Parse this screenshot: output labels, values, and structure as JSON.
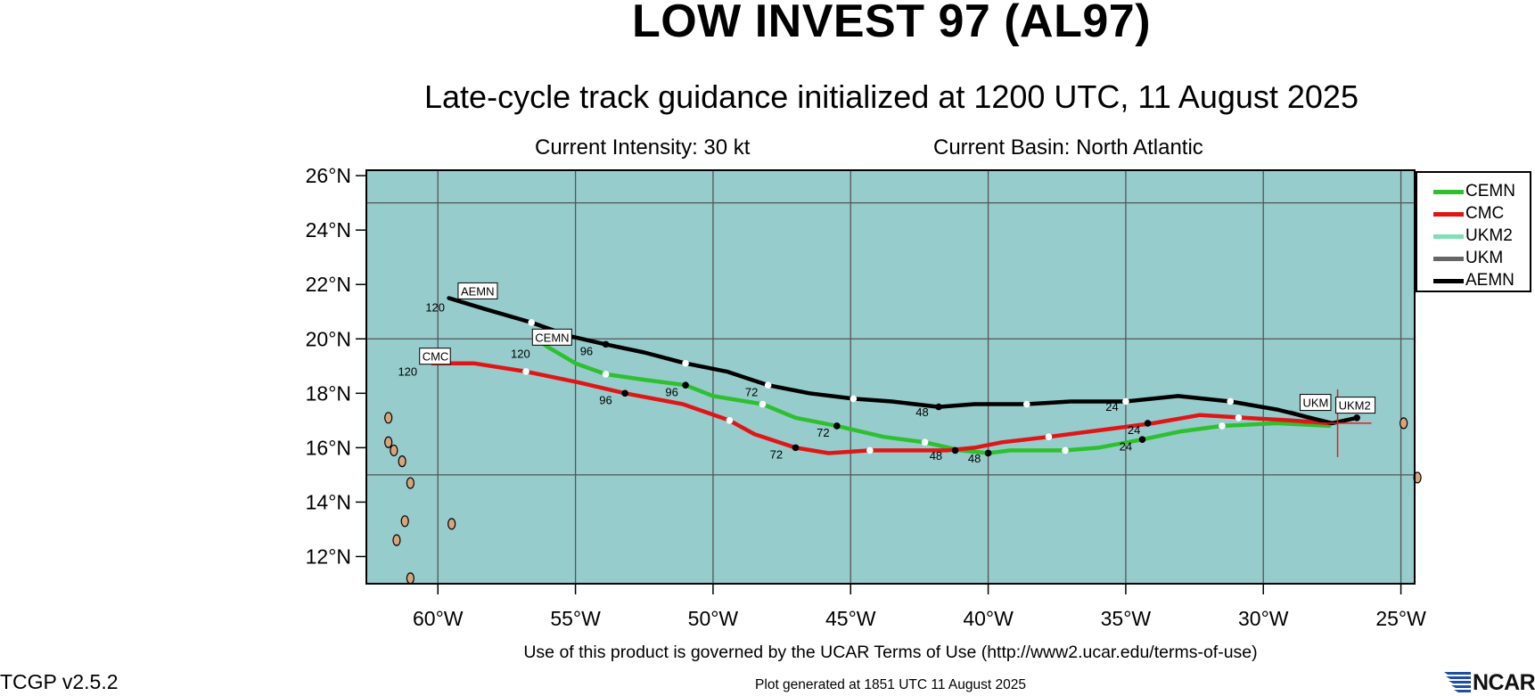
{
  "header": {
    "title": "LOW INVEST 97 (AL97)",
    "subtitle": "Late-cycle track guidance initialized at 1200 UTC, 11 August 2025",
    "intensity": "Current Intensity: 30 kt",
    "basin": "Current Basin: North Atlantic"
  },
  "footer": {
    "terms": "Use of this product is governed by the UCAR Terms of Use (http://www2.ucar.edu/terms-of-use)",
    "generated": "Plot generated at 1851 UTC   11 August 2025",
    "version": "TCGP v2.5.2",
    "logo_text": "NCAR"
  },
  "map": {
    "ocean_color": "#96cccc",
    "land_color": "#d8a47a",
    "lon_range": [
      -62.6,
      -24.5
    ],
    "lat_range": [
      11.0,
      26.2
    ],
    "lon_ticks": [
      {
        "lon": -60,
        "label": "60°W"
      },
      {
        "lon": -55,
        "label": "55°W"
      },
      {
        "lon": -50,
        "label": "50°W"
      },
      {
        "lon": -45,
        "label": "45°W"
      },
      {
        "lon": -40,
        "label": "40°W"
      },
      {
        "lon": -35,
        "label": "35°W"
      },
      {
        "lon": -30,
        "label": "30°W"
      },
      {
        "lon": -25,
        "label": "25°W"
      }
    ],
    "lat_ticks": [
      {
        "lat": 12,
        "label": "12°N"
      },
      {
        "lat": 14,
        "label": "14°N"
      },
      {
        "lat": 16,
        "label": "16°N"
      },
      {
        "lat": 18,
        "label": "18°N"
      },
      {
        "lat": 20,
        "label": "20°N"
      },
      {
        "lat": 22,
        "label": "22°N"
      },
      {
        "lat": 24,
        "label": "24°N"
      },
      {
        "lat": 26,
        "label": "26°N"
      }
    ],
    "grid_lons": [
      -60,
      -55,
      -50,
      -45,
      -40,
      -35,
      -30,
      -25
    ],
    "grid_lats": [
      15,
      20,
      25
    ],
    "current_position": {
      "lon": -27.3,
      "lat": 16.9,
      "marker_color": "#e02020"
    },
    "islands": [
      {
        "lon": -61.8,
        "lat": 16.2
      },
      {
        "lon": -61.3,
        "lat": 15.5
      },
      {
        "lon": -61.0,
        "lat": 14.7
      },
      {
        "lon": -61.2,
        "lat": 13.3
      },
      {
        "lon": -61.5,
        "lat": 12.6
      },
      {
        "lon": -59.5,
        "lat": 13.2
      },
      {
        "lon": -61.8,
        "lat": 17.1
      },
      {
        "lon": -61.6,
        "lat": 15.9
      },
      {
        "lon": -24.9,
        "lat": 16.9
      },
      {
        "lon": -24.4,
        "lat": 14.9
      },
      {
        "lon": -61.0,
        "lat": 11.2
      }
    ]
  },
  "legend": {
    "items": [
      {
        "label": "CEMN",
        "color": "#2ec02e"
      },
      {
        "label": "CMC",
        "color": "#e01616"
      },
      {
        "label": "UKM2",
        "color": "#7fe0b8"
      },
      {
        "label": "UKM",
        "color": "#666666"
      },
      {
        "label": "AEMN",
        "color": "#000000"
      }
    ]
  },
  "tracks": [
    {
      "name": "AEMN",
      "color": "#000000",
      "points": [
        [
          -26.6,
          17.1
        ],
        [
          -27.5,
          16.9
        ],
        [
          -29.5,
          17.4
        ],
        [
          -31.2,
          17.7
        ],
        [
          -33.1,
          17.9
        ],
        [
          -35.0,
          17.7
        ],
        [
          -37.0,
          17.7
        ],
        [
          -38.6,
          17.6
        ],
        [
          -40.5,
          17.6
        ],
        [
          -41.8,
          17.5
        ],
        [
          -43.5,
          17.7
        ],
        [
          -44.9,
          17.8
        ],
        [
          -46.5,
          18.0
        ],
        [
          -48.0,
          18.3
        ],
        [
          -49.5,
          18.8
        ],
        [
          -51.0,
          19.1
        ],
        [
          -52.5,
          19.5
        ],
        [
          -53.9,
          19.8
        ],
        [
          -55.2,
          20.1
        ],
        [
          -56.6,
          20.6
        ],
        [
          -58.3,
          21.1
        ],
        [
          -59.6,
          21.5
        ]
      ],
      "dots": [
        {
          "lon": -26.6,
          "lat": 17.1,
          "fill": "black"
        },
        {
          "lon": -31.2,
          "lat": 17.7,
          "fill": "white"
        },
        {
          "lon": -35.0,
          "lat": 17.7,
          "fill": "white"
        },
        {
          "lon": -38.6,
          "lat": 17.6,
          "fill": "white"
        },
        {
          "lon": -41.8,
          "lat": 17.5,
          "fill": "black"
        },
        {
          "lon": -44.9,
          "lat": 17.8,
          "fill": "white"
        },
        {
          "lon": -48.0,
          "lat": 18.3,
          "fill": "white"
        },
        {
          "lon": -51.0,
          "lat": 19.1,
          "fill": "white"
        },
        {
          "lon": -53.9,
          "lat": 19.8,
          "fill": "black"
        },
        {
          "lon": -56.6,
          "lat": 20.6,
          "fill": "white"
        }
      ],
      "labels": [
        {
          "lon": -35.5,
          "lat": 17.55,
          "text": "24"
        },
        {
          "lon": -42.4,
          "lat": 17.35,
          "text": "48"
        },
        {
          "lon": -48.6,
          "lat": 18.1,
          "text": "72"
        },
        {
          "lon": -54.6,
          "lat": 19.6,
          "text": "96"
        },
        {
          "lon": -60.1,
          "lat": 21.2,
          "text": "120"
        }
      ],
      "tag": {
        "lon": -59.2,
        "lat": 21.6,
        "text": "AEMN"
      }
    },
    {
      "name": "CMC",
      "color": "#e01616",
      "points": [
        [
          -27.6,
          16.9
        ],
        [
          -29.0,
          17.0
        ],
        [
          -30.7,
          17.1
        ],
        [
          -32.3,
          17.2
        ],
        [
          -34.0,
          16.9
        ],
        [
          -35.5,
          16.7
        ],
        [
          -37.8,
          16.4
        ],
        [
          -39.5,
          16.2
        ],
        [
          -40.5,
          16.0
        ],
        [
          -41.5,
          15.9
        ],
        [
          -44.3,
          15.9
        ],
        [
          -45.8,
          15.8
        ],
        [
          -47.0,
          16.0
        ],
        [
          -48.5,
          16.5
        ],
        [
          -49.4,
          17.0
        ],
        [
          -51.1,
          17.6
        ],
        [
          -53.2,
          18.0
        ],
        [
          -54.9,
          18.4
        ],
        [
          -56.8,
          18.8
        ],
        [
          -58.7,
          19.1
        ],
        [
          -60.2,
          19.1
        ]
      ],
      "dots": [
        {
          "lon": -30.9,
          "lat": 17.1,
          "fill": "white"
        },
        {
          "lon": -34.2,
          "lat": 16.9,
          "fill": "black"
        },
        {
          "lon": -37.8,
          "lat": 16.4,
          "fill": "white"
        },
        {
          "lon": -41.2,
          "lat": 15.9,
          "fill": "black"
        },
        {
          "lon": -44.3,
          "lat": 15.9,
          "fill": "white"
        },
        {
          "lon": -47.0,
          "lat": 16.0,
          "fill": "black"
        },
        {
          "lon": -49.4,
          "lat": 17.0,
          "fill": "white"
        },
        {
          "lon": -53.2,
          "lat": 18.0,
          "fill": "black"
        },
        {
          "lon": -56.8,
          "lat": 18.8,
          "fill": "white"
        }
      ],
      "labels": [
        {
          "lon": -34.7,
          "lat": 16.7,
          "text": "24"
        },
        {
          "lon": -41.9,
          "lat": 15.75,
          "text": "48"
        },
        {
          "lon": -47.7,
          "lat": 15.8,
          "text": "72"
        },
        {
          "lon": -53.9,
          "lat": 17.8,
          "text": "96"
        },
        {
          "lon": -61.1,
          "lat": 18.85,
          "text": "120"
        }
      ],
      "tag": {
        "lon": -60.6,
        "lat": 19.2,
        "text": "CMC"
      }
    },
    {
      "name": "CEMN",
      "color": "#2ec02e",
      "points": [
        [
          -27.6,
          16.8
        ],
        [
          -29.5,
          16.9
        ],
        [
          -31.5,
          16.8
        ],
        [
          -33.0,
          16.6
        ],
        [
          -34.4,
          16.3
        ],
        [
          -36.0,
          16.0
        ],
        [
          -37.2,
          15.9
        ],
        [
          -39.2,
          15.9
        ],
        [
          -40.0,
          15.8
        ],
        [
          -41.0,
          15.9
        ],
        [
          -42.3,
          16.2
        ],
        [
          -43.8,
          16.4
        ],
        [
          -45.5,
          16.8
        ],
        [
          -47.0,
          17.1
        ],
        [
          -48.2,
          17.6
        ],
        [
          -50.0,
          17.9
        ],
        [
          -51.0,
          18.3
        ],
        [
          -52.5,
          18.5
        ],
        [
          -53.9,
          18.7
        ],
        [
          -55.0,
          19.1
        ],
        [
          -56.0,
          19.7
        ],
        [
          -56.3,
          19.9
        ]
      ],
      "dots": [
        {
          "lon": -31.5,
          "lat": 16.8,
          "fill": "white"
        },
        {
          "lon": -34.4,
          "lat": 16.3,
          "fill": "black"
        },
        {
          "lon": -37.2,
          "lat": 15.9,
          "fill": "white"
        },
        {
          "lon": -40.0,
          "lat": 15.8,
          "fill": "black"
        },
        {
          "lon": -42.3,
          "lat": 16.2,
          "fill": "white"
        },
        {
          "lon": -45.5,
          "lat": 16.8,
          "fill": "black"
        },
        {
          "lon": -48.2,
          "lat": 17.6,
          "fill": "white"
        },
        {
          "lon": -51.0,
          "lat": 18.3,
          "fill": "black"
        },
        {
          "lon": -53.9,
          "lat": 18.7,
          "fill": "white"
        }
      ],
      "labels": [
        {
          "lon": -35.0,
          "lat": 16.1,
          "text": "24"
        },
        {
          "lon": -40.5,
          "lat": 15.65,
          "text": "48"
        },
        {
          "lon": -46.0,
          "lat": 16.6,
          "text": "72"
        },
        {
          "lon": -51.5,
          "lat": 18.1,
          "text": "96"
        },
        {
          "lon": -57.0,
          "lat": 19.5,
          "text": "120"
        }
      ],
      "tag": {
        "lon": -56.5,
        "lat": 19.9,
        "text": "CEMN"
      }
    },
    {
      "name": "UKM2",
      "color": "#7fe0b8",
      "points": [
        [
          -26.6,
          17.1
        ],
        [
          -27.5,
          16.9
        ]
      ],
      "dots": [],
      "labels": [],
      "tag": {
        "lon": -27.3,
        "lat": 17.4,
        "text": "UKM2"
      }
    },
    {
      "name": "UKM",
      "color": "#666666",
      "points": [
        [
          -27.6,
          16.85
        ],
        [
          -29.0,
          17.3
        ]
      ],
      "dots": [],
      "labels": [],
      "tag": {
        "lon": -28.6,
        "lat": 17.5,
        "text": "UKM"
      }
    }
  ]
}
